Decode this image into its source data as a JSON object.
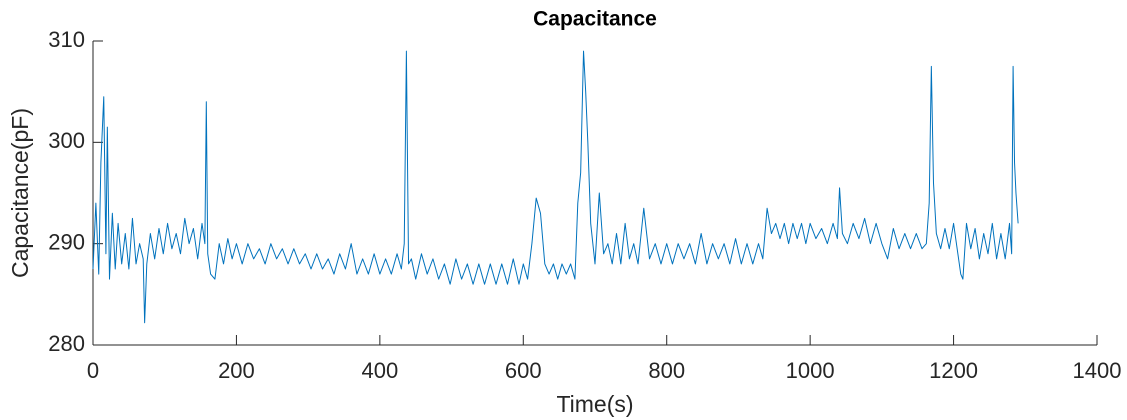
{
  "chart_data": {
    "type": "line",
    "title": "Capacitance",
    "x_label": "Time(s)",
    "y_label": "Capacitance(pF)",
    "color": "#0072bd",
    "xlim": [
      0,
      1400
    ],
    "xticks": [
      0,
      200,
      400,
      600,
      800,
      1000,
      1200,
      1400
    ],
    "ylim": [
      280,
      310
    ],
    "yticks": [
      280,
      290,
      300,
      310
    ],
    "x": [
      0,
      4,
      8,
      11,
      15,
      18,
      20,
      23,
      27,
      31,
      35,
      40,
      45,
      50,
      55,
      60,
      65,
      70,
      72,
      75,
      80,
      86,
      92,
      98,
      104,
      110,
      116,
      122,
      128,
      134,
      140,
      146,
      152,
      156,
      158,
      160,
      164,
      170,
      176,
      182,
      188,
      194,
      200,
      208,
      216,
      224,
      232,
      240,
      248,
      256,
      264,
      272,
      280,
      288,
      296,
      304,
      312,
      320,
      328,
      336,
      344,
      352,
      360,
      368,
      376,
      384,
      392,
      400,
      408,
      416,
      424,
      430,
      434,
      437,
      440,
      444,
      450,
      458,
      466,
      474,
      482,
      490,
      498,
      506,
      514,
      522,
      530,
      538,
      546,
      554,
      562,
      570,
      578,
      586,
      594,
      600,
      606,
      612,
      618,
      624,
      630,
      636,
      642,
      648,
      654,
      660,
      666,
      672,
      676,
      680,
      684,
      687,
      690,
      694,
      700,
      706,
      712,
      718,
      724,
      730,
      736,
      742,
      748,
      754,
      760,
      768,
      776,
      784,
      792,
      800,
      808,
      816,
      824,
      832,
      840,
      848,
      856,
      864,
      872,
      880,
      888,
      896,
      904,
      912,
      920,
      928,
      934,
      940,
      946,
      952,
      958,
      964,
      970,
      976,
      982,
      988,
      994,
      1000,
      1008,
      1016,
      1024,
      1032,
      1038,
      1041,
      1045,
      1052,
      1060,
      1068,
      1076,
      1084,
      1092,
      1100,
      1108,
      1116,
      1124,
      1132,
      1140,
      1148,
      1156,
      1162,
      1166,
      1169,
      1172,
      1176,
      1182,
      1188,
      1194,
      1200,
      1206,
      1210,
      1213,
      1218,
      1224,
      1230,
      1236,
      1242,
      1248,
      1254,
      1260,
      1266,
      1272,
      1278,
      1281,
      1283,
      1285,
      1287,
      1290
    ],
    "values": [
      287.5,
      294,
      287,
      298,
      304.5,
      289,
      301.5,
      286.5,
      293,
      287.5,
      292,
      288,
      291,
      287.5,
      292.5,
      288,
      290,
      288.5,
      282.2,
      288,
      291,
      288.5,
      291.5,
      289,
      292,
      289.5,
      291,
      289,
      292.5,
      290,
      291.5,
      288.5,
      292,
      290,
      304,
      289,
      287,
      286.5,
      290,
      288,
      290.5,
      288.5,
      290,
      288,
      290,
      288.5,
      289.5,
      288,
      290,
      288.5,
      289.5,
      288,
      289.5,
      288,
      289,
      287.5,
      289,
      287.5,
      288.5,
      287,
      289,
      287.5,
      290,
      287,
      288.5,
      287,
      289,
      287,
      288.5,
      287,
      289,
      287.5,
      290,
      309,
      288,
      288.5,
      286.5,
      289,
      287,
      288.5,
      286.5,
      288,
      286,
      288.5,
      286.5,
      288,
      286,
      288,
      286,
      288,
      286,
      288,
      286,
      288.5,
      286,
      288,
      286.5,
      290,
      294.5,
      293,
      288,
      287,
      288,
      286.5,
      288,
      287,
      288,
      286.5,
      294,
      297,
      309,
      305,
      300,
      292,
      288,
      295,
      289,
      290,
      288,
      291,
      288,
      292,
      288.5,
      290,
      288,
      293.5,
      288.5,
      290,
      288,
      290,
      288,
      290,
      288.5,
      290,
      288,
      291,
      288,
      290,
      288.5,
      290,
      288,
      290.5,
      288,
      290,
      288,
      290,
      288.5,
      293.5,
      291,
      292,
      290.5,
      292,
      290,
      292,
      290.5,
      292,
      290,
      292,
      290.5,
      291.5,
      290,
      292,
      290.5,
      295.5,
      291,
      290,
      292,
      290.5,
      292.5,
      290,
      292,
      290,
      288.5,
      291.5,
      289.5,
      291,
      289.5,
      291,
      289.5,
      290,
      294,
      307.5,
      296,
      291,
      289.5,
      291.5,
      289.5,
      292,
      289,
      287,
      286.5,
      292,
      289.5,
      291.5,
      288.5,
      291,
      289,
      292,
      288.5,
      291,
      288.5,
      292,
      289,
      307.5,
      298,
      295,
      292
    ]
  }
}
